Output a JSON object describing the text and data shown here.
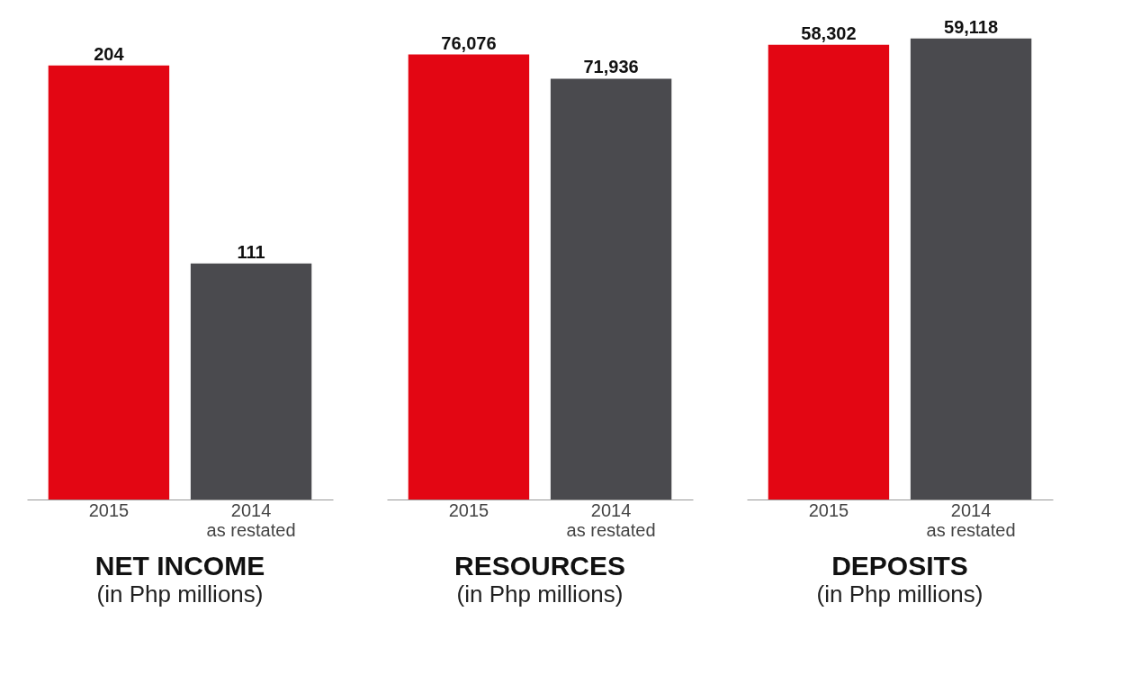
{
  "chart_data": [
    {
      "type": "bar",
      "title": "NET INCOME",
      "subtitle": "(in Php millions)",
      "categories": [
        "2015",
        "2014 as restated"
      ],
      "values": [
        204,
        111
      ],
      "value_labels": [
        "204",
        "111"
      ],
      "colors": [
        "#e30613",
        "#4a4a4e"
      ],
      "tick_labels": "x"
    },
    {
      "type": "bar",
      "title": "RESOURCES",
      "subtitle": "(in Php millions)",
      "categories": [
        "2015",
        "2014 as restated"
      ],
      "values": [
        76076,
        71936
      ],
      "value_labels": [
        "76,076",
        "71,936"
      ],
      "colors": [
        "#e30613",
        "#4a4a4e"
      ],
      "tick_labels": "x"
    },
    {
      "type": "bar",
      "title": "DEPOSITS",
      "subtitle": "(in Php millions)",
      "categories": [
        "2015",
        "2014 as restated"
      ],
      "values": [
        58302,
        59118
      ],
      "value_labels": [
        "58,302",
        "59,118"
      ],
      "colors": [
        "#e30613",
        "#4a4a4e"
      ],
      "tick_labels": "x"
    }
  ]
}
